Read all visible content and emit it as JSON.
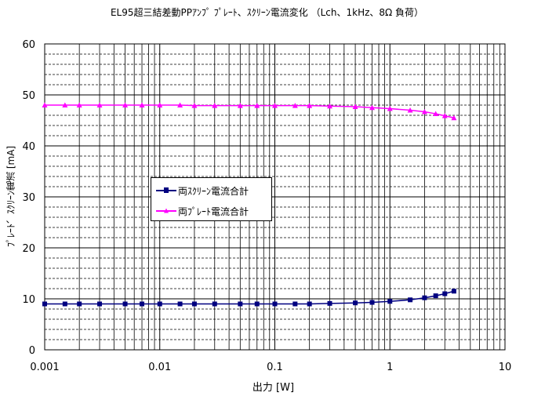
{
  "colors": {
    "series1": "#000080",
    "series2": "#FF00FF",
    "grid": "#000000",
    "background": "#FFFFFF"
  },
  "chart_data": {
    "type": "line",
    "title": "EL95超三結差動PPｱﾝﾌﾟ ﾌﾟﾚｰﾄ、ｽｸﾘｰﾝ電流変化 （Lch、1kHz、8Ω 負荷）",
    "xlabel": "出力 [W]",
    "ylabel": "ﾌﾟﾚｰﾄ、ｽｸﾘｰﾝ電流 [mA]",
    "xscale": "log",
    "xlim": [
      0.001,
      10
    ],
    "ylim": [
      0,
      60
    ],
    "grid": true,
    "legend_position": "center-left",
    "x_tick_labels": [
      "0.001",
      "0.01",
      "0.1",
      "1",
      "10"
    ],
    "y_tick_labels": [
      "0",
      "10",
      "20",
      "30",
      "40",
      "50",
      "60"
    ],
    "series": [
      {
        "name": "両ｽｸﾘｰﾝ電流合計",
        "color": "#000080",
        "marker": "square",
        "x": [
          0.001,
          0.0015,
          0.002,
          0.003,
          0.005,
          0.007,
          0.01,
          0.015,
          0.02,
          0.03,
          0.05,
          0.07,
          0.1,
          0.15,
          0.2,
          0.3,
          0.5,
          0.7,
          1.0,
          1.5,
          2.0,
          2.5,
          3.0,
          3.6
        ],
        "values": [
          9.0,
          9.0,
          9.0,
          9.0,
          9.0,
          9.0,
          9.0,
          9.0,
          9.0,
          9.0,
          9.0,
          9.0,
          9.0,
          9.0,
          9.0,
          9.1,
          9.2,
          9.3,
          9.5,
          9.8,
          10.2,
          10.6,
          11.0,
          11.5
        ]
      },
      {
        "name": "両ﾌﾟﾚｰﾄ電流合計",
        "color": "#FF00FF",
        "marker": "triangle",
        "x": [
          0.001,
          0.0015,
          0.002,
          0.003,
          0.005,
          0.007,
          0.01,
          0.015,
          0.02,
          0.03,
          0.05,
          0.07,
          0.1,
          0.15,
          0.2,
          0.3,
          0.5,
          0.7,
          1.0,
          1.5,
          2.0,
          2.5,
          3.0,
          3.6
        ],
        "values": [
          48.0,
          48.0,
          48.0,
          48.0,
          48.0,
          48.0,
          48.0,
          48.0,
          47.9,
          47.9,
          47.9,
          47.9,
          47.9,
          47.9,
          47.9,
          47.8,
          47.7,
          47.5,
          47.3,
          47.0,
          46.7,
          46.3,
          45.9,
          45.5
        ]
      }
    ]
  }
}
